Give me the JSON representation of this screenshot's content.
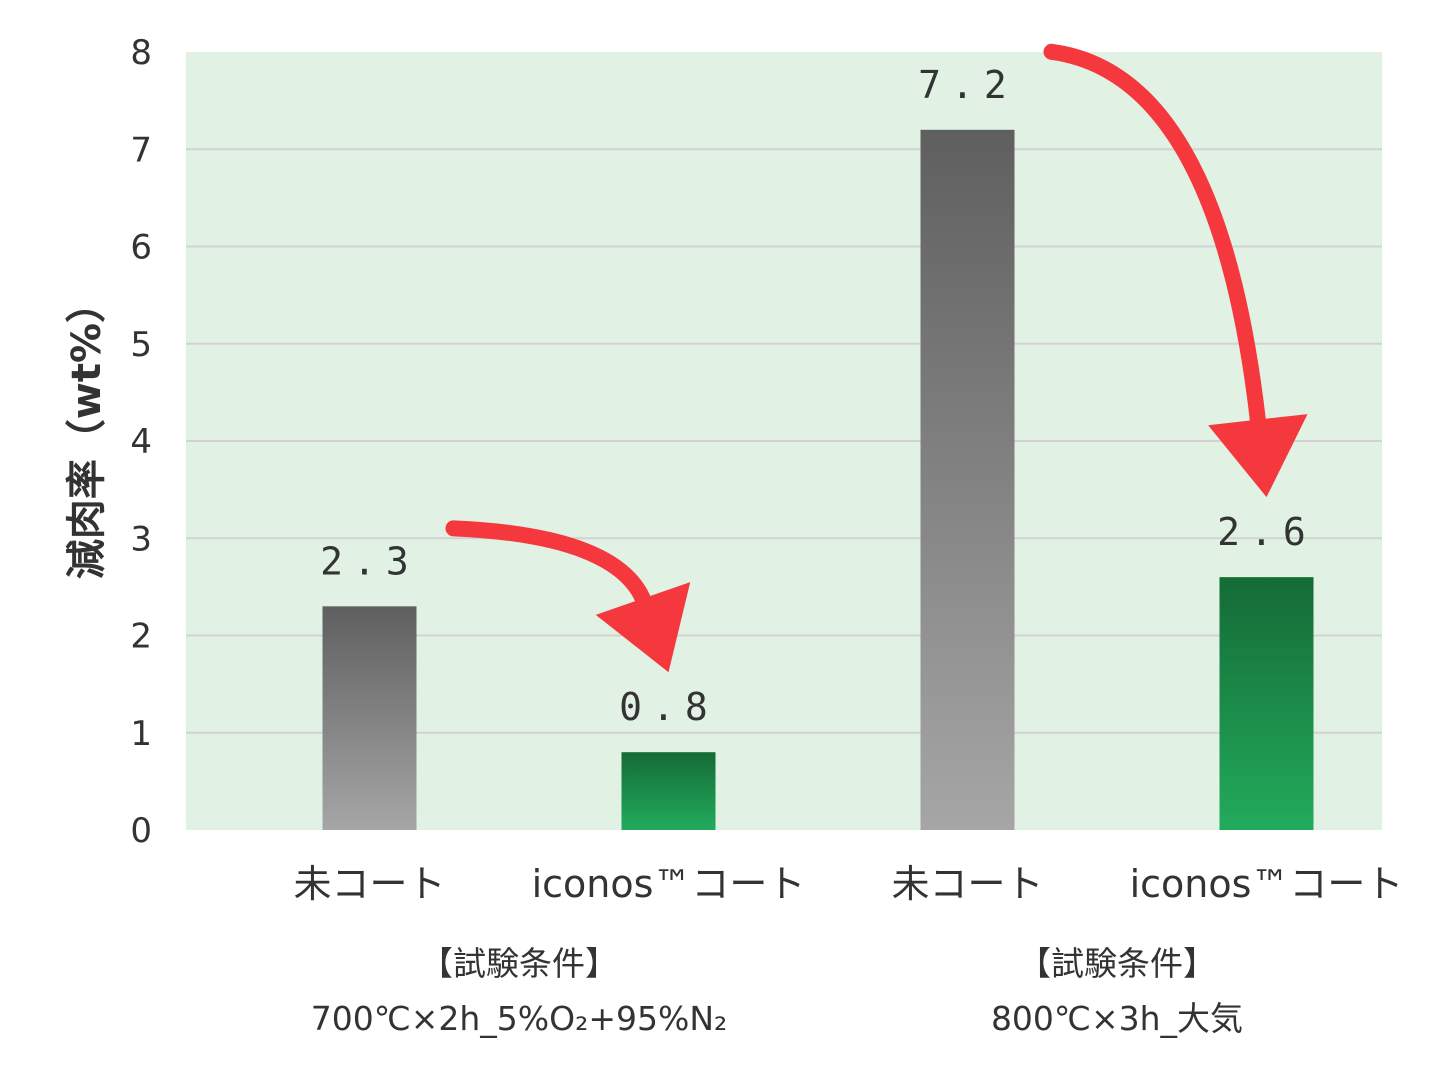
{
  "chart_data": {
    "type": "bar",
    "categories": [
      "未コート",
      "iconos™コート",
      "未コート",
      "iconos™コート"
    ],
    "values": [
      2.3,
      0.8,
      7.2,
      2.6
    ],
    "data_labels": [
      "2.3",
      "0.8",
      "7.2",
      "2.6"
    ],
    "bar_kinds": [
      "uncoated",
      "coated",
      "uncoated",
      "coated"
    ],
    "ylabel": "減肉率（wt%）",
    "xlabel": "",
    "ylim": [
      0,
      8
    ],
    "yticks": [
      "0",
      "1",
      "2",
      "3",
      "4",
      "5",
      "6",
      "7",
      "8"
    ],
    "grid": true,
    "groups": [
      {
        "heading": "【試験条件】",
        "condition": "700℃×2h_5%O₂+95%N₂",
        "from_bar": 0,
        "to_bar": 1
      },
      {
        "heading": "【試験条件】",
        "condition": "800℃×3h_大気",
        "from_bar": 2,
        "to_bar": 3
      }
    ],
    "colors": {
      "plot_background": "#e1f2e4",
      "gridline": "#d2d2d2",
      "uncoated_top": "#5f5f5f",
      "uncoated_bottom": "#a6a6a6",
      "coated_top": "#146b36",
      "coated_bottom": "#22ab5c",
      "arrow": "#f5383d"
    }
  }
}
